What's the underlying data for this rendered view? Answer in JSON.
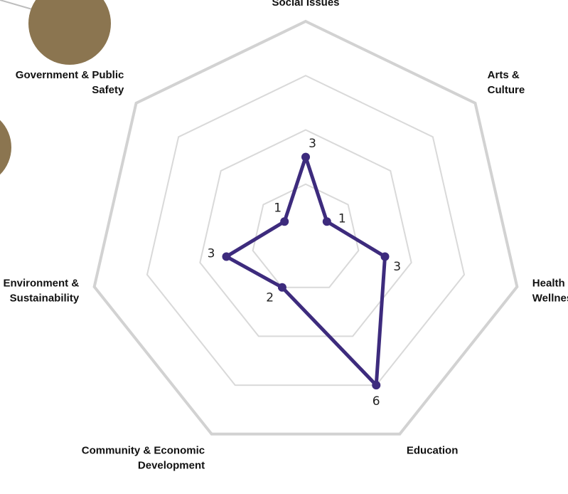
{
  "chart_data": {
    "type": "radar",
    "categories": [
      [
        "Social Issues"
      ],
      [
        "Arts &",
        "Culture"
      ],
      [
        "Health &",
        "Wellness"
      ],
      [
        "Education"
      ],
      [
        "Community & Economic",
        "Development"
      ],
      [
        "Environment &",
        "Sustainability"
      ],
      [
        "Government & Public",
        "Safety"
      ]
    ],
    "series": [
      {
        "values": [
          3,
          1,
          3,
          6,
          2,
          3,
          1
        ],
        "color": "#3d2b7d"
      }
    ],
    "rmax": 8,
    "grid_levels": [
      2,
      4,
      6,
      8
    ],
    "grid": true,
    "legend": "none"
  },
  "decorations": {
    "circle_color": "#8b7550"
  }
}
